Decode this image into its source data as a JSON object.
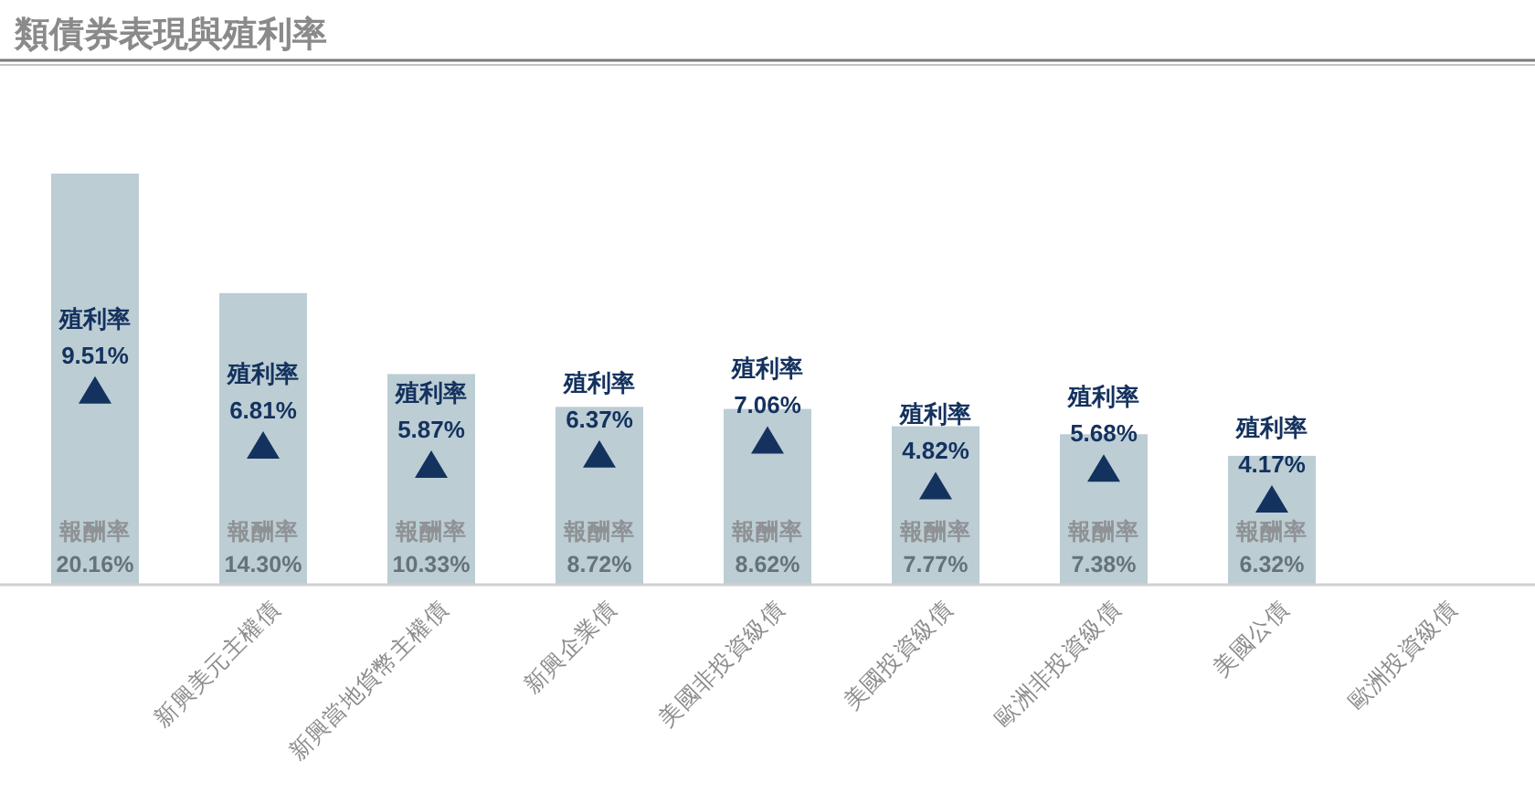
{
  "chart_data": {
    "type": "bar",
    "title": "類債券表現與殖利率",
    "categories": [
      null,
      "新興美元主權債",
      "新興當地貨幣主權債",
      "新興企業債",
      "美國非投資級債",
      "美國投資級債",
      "歐洲非投資級債",
      "美國公債",
      "歐洲投資級債"
    ],
    "series": [
      {
        "name": "報酬率",
        "color": "#bccdd4",
        "values": [
          20.16,
          14.3,
          10.33,
          8.72,
          8.62,
          7.77,
          7.38,
          6.32,
          null
        ],
        "value_labels": [
          "20.16%",
          "14.30%",
          "10.33%",
          "8.72%",
          "8.62%",
          "7.77%",
          "7.38%",
          "6.32%",
          null
        ]
      },
      {
        "name": "殖利率",
        "type": "scatter",
        "color": "#14325e",
        "marker": "triangle",
        "values": [
          9.51,
          6.81,
          5.87,
          6.37,
          7.06,
          4.82,
          5.68,
          4.17,
          null
        ],
        "value_labels": [
          "9.51%",
          "6.81%",
          "5.87%",
          "6.37%",
          "7.06%",
          "4.82%",
          "5.68%",
          "4.17%",
          null
        ]
      }
    ]
  }
}
